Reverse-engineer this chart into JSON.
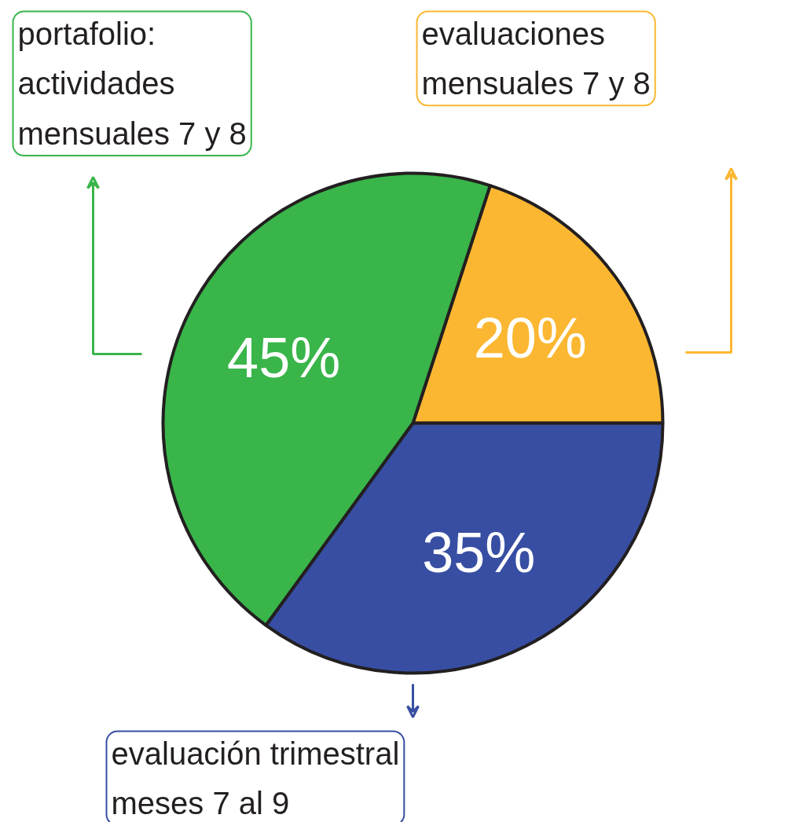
{
  "chart_data": {
    "type": "pie",
    "categories": [
      "evaluaciones\nmensuales 7 y 8",
      "portafolio:\nactividades\nmensuales 7 y 8",
      "evaluación trimestral\nmeses 7 al 9"
    ],
    "values": [
      20,
      45,
      35
    ],
    "colors": [
      "#fbb731",
      "#39b54a",
      "#374ea2"
    ],
    "value_labels": [
      "20%",
      "45%",
      "35%"
    ]
  }
}
